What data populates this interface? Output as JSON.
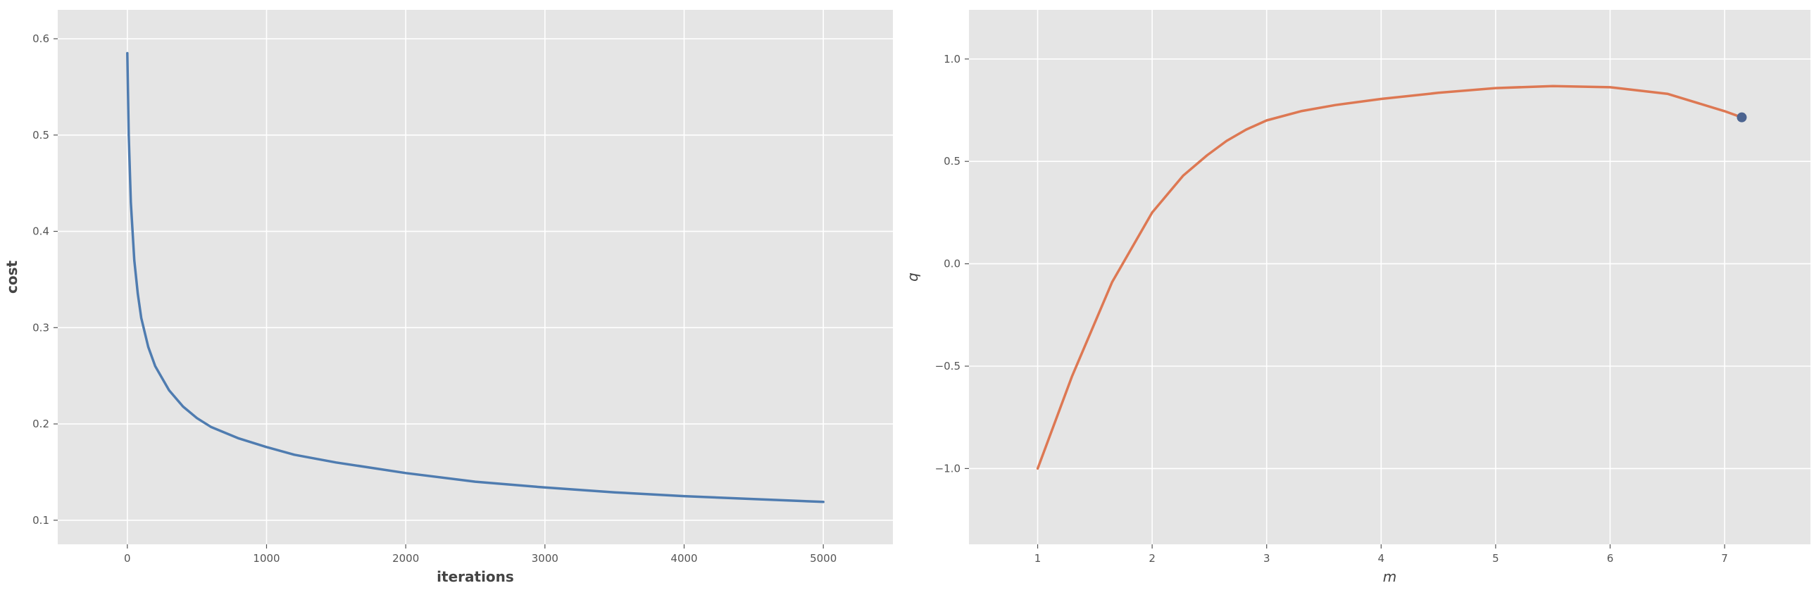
{
  "chart_data": [
    {
      "type": "line",
      "title": "",
      "xlabel": "iterations",
      "ylabel": "cost",
      "xlim": [
        -500,
        5500
      ],
      "ylim": [
        0.075,
        0.63
      ],
      "xticks": [
        0,
        1000,
        2000,
        3000,
        4000,
        5000
      ],
      "yticks": [
        0.1,
        0.2,
        0.3,
        0.4,
        0.5,
        0.6
      ],
      "xtick_labels": [
        "0",
        "1000",
        "2000",
        "3000",
        "4000",
        "5000"
      ],
      "ytick_labels": [
        "0.1",
        "0.2",
        "0.3",
        "0.4",
        "0.5",
        "0.6"
      ],
      "grid": true,
      "colors": {
        "background": "#e5e5e5",
        "grid": "#ffffff",
        "line": "#4f7cb0"
      },
      "series": [
        {
          "x": [
            0,
            10,
            25,
            50,
            75,
            100,
            150,
            200,
            300,
            400,
            500,
            600,
            800,
            1000,
            1200,
            1500,
            2000,
            2500,
            3000,
            3500,
            4000,
            4500,
            5000
          ],
          "values": [
            0.585,
            0.5,
            0.43,
            0.37,
            0.335,
            0.31,
            0.28,
            0.26,
            0.235,
            0.218,
            0.206,
            0.197,
            0.185,
            0.176,
            0.168,
            0.16,
            0.149,
            0.14,
            0.134,
            0.129,
            0.125,
            0.122,
            0.119
          ]
        }
      ]
    },
    {
      "type": "line",
      "title": "",
      "xlabel": "m",
      "ylabel": "q",
      "xlim": [
        0.4,
        7.75
      ],
      "ylim": [
        -1.37,
        1.24
      ],
      "xticks": [
        1,
        2,
        3,
        4,
        5,
        6,
        7
      ],
      "yticks": [
        -1.0,
        -0.5,
        0.0,
        0.5,
        1.0
      ],
      "xtick_labels": [
        "1",
        "2",
        "3",
        "4",
        "5",
        "6",
        "7"
      ],
      "ytick_labels": [
        "−1.0",
        "−0.5",
        "0.0",
        "0.5",
        "1.0"
      ],
      "grid": true,
      "colors": {
        "background": "#e5e5e5",
        "grid": "#ffffff",
        "line": "#dd7853",
        "point": "#4c6490"
      },
      "series": [
        {
          "x": [
            1.0,
            1.3,
            1.65,
            2.0,
            2.27,
            2.48,
            2.65,
            2.82,
            3.0,
            3.3,
            3.6,
            4.0,
            4.5,
            5.0,
            5.5,
            6.0,
            6.5,
            7.0,
            7.15
          ],
          "values": [
            -1.0,
            -0.55,
            -0.09,
            0.25,
            0.43,
            0.53,
            0.6,
            0.655,
            0.7,
            0.745,
            0.775,
            0.805,
            0.835,
            0.858,
            0.868,
            0.862,
            0.83,
            0.745,
            0.715
          ]
        }
      ],
      "points": [
        {
          "x": 7.15,
          "y": 0.715
        }
      ]
    }
  ]
}
